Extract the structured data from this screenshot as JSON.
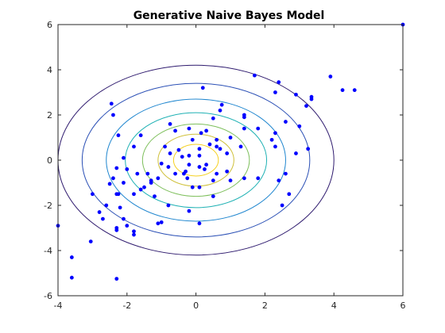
{
  "chart_data": {
    "type": "scatter",
    "title": "Generative Naive Bayes Model",
    "xlabel": "",
    "ylabel": "",
    "xlim": [
      -4,
      6
    ],
    "ylim": [
      -6,
      6
    ],
    "xticks": [
      -4,
      -2,
      0,
      2,
      4,
      6
    ],
    "yticks": [
      -6,
      -4,
      -2,
      0,
      2,
      4,
      6
    ],
    "grid": false,
    "legend": "none",
    "contours": {
      "center": [
        0,
        0
      ],
      "semi_axes": [
        {
          "rx": 4.0,
          "ry": 4.2,
          "color": "#2e1a6e"
        },
        {
          "rx": 3.3,
          "ry": 3.4,
          "color": "#2a4fb5"
        },
        {
          "rx": 2.6,
          "ry": 2.7,
          "color": "#1f86cf"
        },
        {
          "rx": 2.05,
          "ry": 2.1,
          "color": "#1fb1b4"
        },
        {
          "rx": 1.55,
          "ry": 1.6,
          "color": "#7dbf5b"
        },
        {
          "rx": 1.1,
          "ry": 1.15,
          "color": "#cfc03a"
        },
        {
          "rx": 0.65,
          "ry": 0.7,
          "color": "#f5d020"
        }
      ]
    },
    "series": [
      {
        "color": "#0000ff",
        "points": [
          [
            6.0,
            6.0
          ],
          [
            3.9,
            3.7
          ],
          [
            4.6,
            3.1
          ],
          [
            4.25,
            3.1
          ],
          [
            3.35,
            2.8
          ],
          [
            3.35,
            2.7
          ],
          [
            2.4,
            3.45
          ],
          [
            1.7,
            3.75
          ],
          [
            2.3,
            3.0
          ],
          [
            2.9,
            2.9
          ],
          [
            3.2,
            2.4
          ],
          [
            3.0,
            1.5
          ],
          [
            2.6,
            1.7
          ],
          [
            3.25,
            0.5
          ],
          [
            2.9,
            0.3
          ],
          [
            2.3,
            1.2
          ],
          [
            2.2,
            0.9
          ],
          [
            2.3,
            0.6
          ],
          [
            1.8,
            1.4
          ],
          [
            1.4,
            1.4
          ],
          [
            1.4,
            1.9
          ],
          [
            1.4,
            2.0
          ],
          [
            0.75,
            2.45
          ],
          [
            0.5,
            1.85
          ],
          [
            0.2,
            3.2
          ],
          [
            0.7,
            2.2
          ],
          [
            1.0,
            1.0
          ],
          [
            1.3,
            0.6
          ],
          [
            0.9,
            0.3
          ],
          [
            0.7,
            0.5
          ],
          [
            0.6,
            0.9
          ],
          [
            0.6,
            0.6
          ],
          [
            0.4,
            0.7
          ],
          [
            0.3,
            1.3
          ],
          [
            0.15,
            1.2
          ],
          [
            0.1,
            0.5
          ],
          [
            -0.1,
            0.9
          ],
          [
            -0.2,
            1.4
          ],
          [
            -0.6,
            1.3
          ],
          [
            -0.75,
            1.6
          ],
          [
            -0.5,
            0.45
          ],
          [
            -0.4,
            0.15
          ],
          [
            -0.75,
            0.3
          ],
          [
            -0.9,
            0.6
          ],
          [
            -0.2,
            0.2
          ],
          [
            0.1,
            0.2
          ],
          [
            0.3,
            -0.2
          ],
          [
            0.25,
            -0.4
          ],
          [
            0.1,
            -0.3
          ],
          [
            -0.2,
            -0.2
          ],
          [
            -0.3,
            -0.5
          ],
          [
            -0.6,
            -0.6
          ],
          [
            -0.25,
            -0.8
          ],
          [
            -0.1,
            -1.2
          ],
          [
            0.1,
            -1.2
          ],
          [
            0.5,
            -0.9
          ],
          [
            0.6,
            -0.6
          ],
          [
            0.9,
            -0.5
          ],
          [
            1.0,
            -0.9
          ],
          [
            1.4,
            -0.8
          ],
          [
            1.8,
            -0.8
          ],
          [
            2.4,
            -0.9
          ],
          [
            2.6,
            -0.6
          ],
          [
            2.7,
            -1.5
          ],
          [
            2.5,
            -2.0
          ],
          [
            -0.8,
            -0.3
          ],
          [
            -1.0,
            -0.15
          ],
          [
            -1.1,
            -0.8
          ],
          [
            -1.3,
            -0.9
          ],
          [
            -1.3,
            -1.0
          ],
          [
            -1.4,
            -0.6
          ],
          [
            -1.7,
            -0.6
          ],
          [
            -1.5,
            -1.2
          ],
          [
            -1.6,
            -1.3
          ],
          [
            -1.8,
            -1.5
          ],
          [
            -2.1,
            -1.0
          ],
          [
            -2.3,
            -1.5
          ],
          [
            -2.5,
            -1.05
          ],
          [
            -2.4,
            -0.8
          ],
          [
            -2.0,
            -0.4
          ],
          [
            -2.1,
            0.1
          ],
          [
            -1.8,
            0.6
          ],
          [
            -1.6,
            1.1
          ],
          [
            -2.3,
            -0.35
          ],
          [
            -2.25,
            1.1
          ],
          [
            -2.4,
            2.0
          ],
          [
            -2.45,
            2.5
          ],
          [
            -2.8,
            -2.3
          ],
          [
            -2.7,
            -2.6
          ],
          [
            -3.0,
            -1.5
          ],
          [
            -2.6,
            -2.0
          ],
          [
            -2.2,
            -2.1
          ],
          [
            -2.1,
            -2.6
          ],
          [
            -2.0,
            -2.9
          ],
          [
            -2.3,
            -3.0
          ],
          [
            -1.8,
            -3.15
          ],
          [
            -1.8,
            -3.3
          ],
          [
            -1.1,
            -2.8
          ],
          [
            -1.0,
            -2.75
          ],
          [
            -0.8,
            -2.0
          ],
          [
            -0.2,
            -2.25
          ],
          [
            0.1,
            -2.8
          ],
          [
            0.5,
            -1.6
          ],
          [
            -1.2,
            -1.6
          ],
          [
            -3.05,
            -3.6
          ],
          [
            -4.0,
            -2.9
          ],
          [
            -3.6,
            -4.3
          ],
          [
            -3.6,
            -5.2
          ],
          [
            -2.3,
            -5.25
          ],
          [
            -2.3,
            -3.1
          ],
          [
            -0.35,
            -0.6
          ],
          [
            -2.25,
            -1.5
          ]
        ]
      }
    ]
  }
}
